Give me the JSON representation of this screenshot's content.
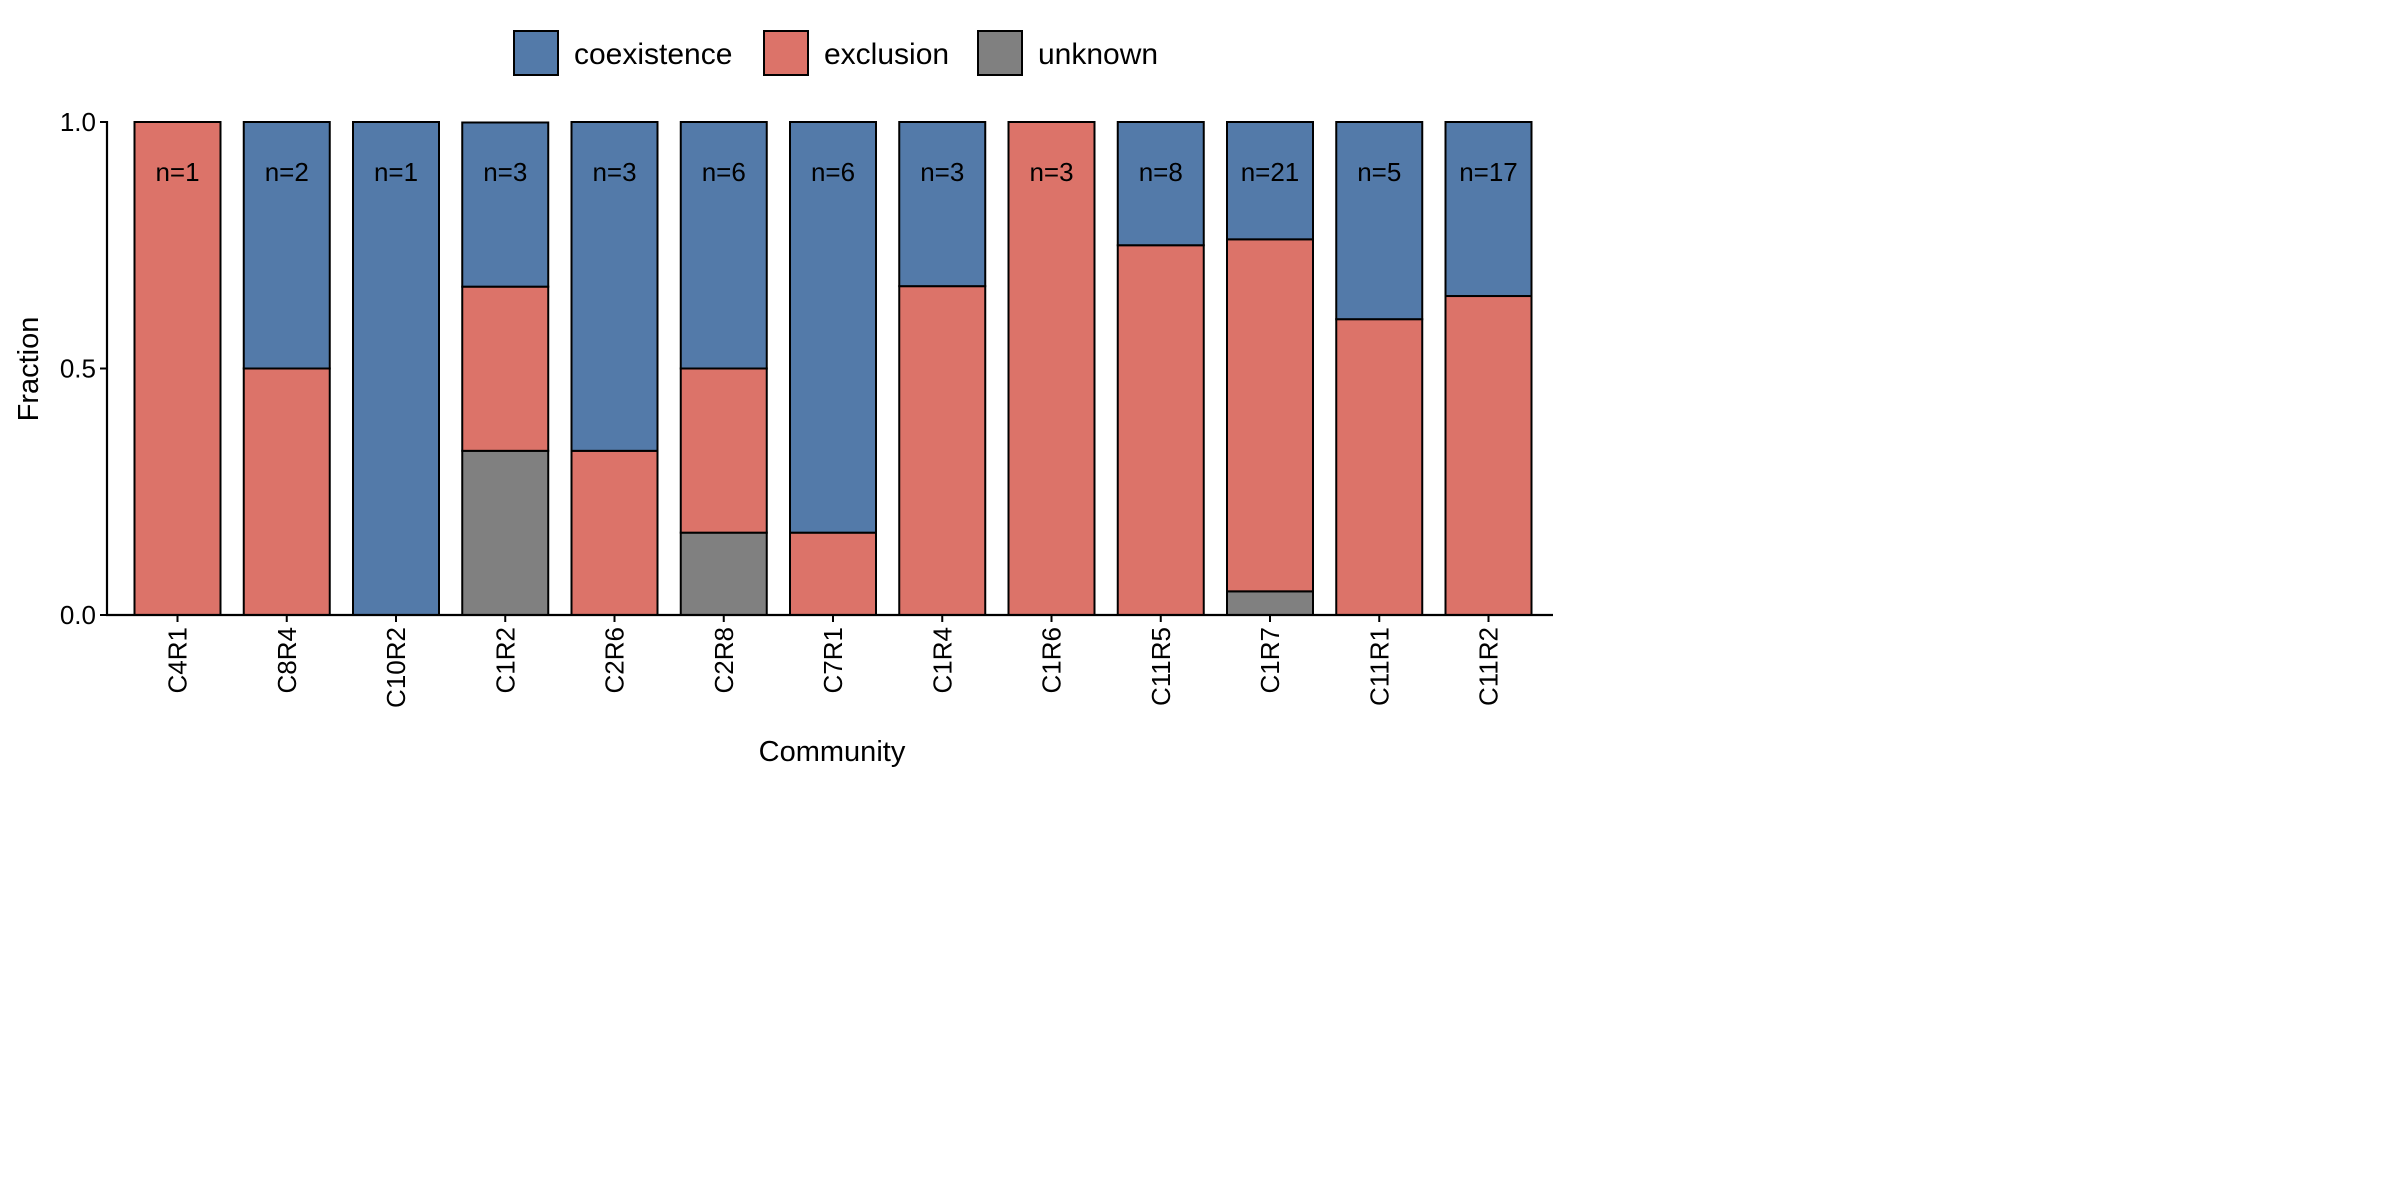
{
  "chart_data": {
    "type": "bar",
    "stacked": true,
    "xlabel": "Community",
    "ylabel": "Fraction",
    "ylim": [
      0,
      1
    ],
    "yticks": [
      0.0,
      0.5,
      1.0
    ],
    "ytick_labels": [
      "0.0",
      "0.5",
      "1.0"
    ],
    "legend_position": "top",
    "categories": [
      "C4R1",
      "C8R4",
      "C10R2",
      "C1R2",
      "C2R6",
      "C2R8",
      "C7R1",
      "C1R4",
      "C1R6",
      "C11R5",
      "C1R7",
      "C11R1",
      "C11R2"
    ],
    "n_labels": [
      "n=1",
      "n=2",
      "n=1",
      "n=3",
      "n=3",
      "n=6",
      "n=6",
      "n=3",
      "n=3",
      "n=8",
      "n=21",
      "n=5",
      "n=17"
    ],
    "series": [
      {
        "name": "unknown",
        "color": "#808080",
        "values": [
          0,
          0,
          0,
          0.333,
          0,
          0.167,
          0,
          0,
          0,
          0,
          0.048,
          0,
          0
        ]
      },
      {
        "name": "exclusion",
        "color": "#dc7369",
        "values": [
          1,
          0.5,
          0,
          0.333,
          0.333,
          0.333,
          0.167,
          0.667,
          1,
          0.75,
          0.714,
          0.6,
          0.647
        ]
      },
      {
        "name": "coexistence",
        "color": "#537aa9",
        "values": [
          0,
          0.5,
          1,
          0.333,
          0.667,
          0.5,
          0.833,
          0.333,
          0,
          0.25,
          0.238,
          0.4,
          0.353
        ]
      }
    ],
    "legend": [
      {
        "name": "coexistence",
        "color": "#537aa9"
      },
      {
        "name": "exclusion",
        "color": "#dc7369"
      },
      {
        "name": "unknown",
        "color": "#808080"
      }
    ]
  }
}
